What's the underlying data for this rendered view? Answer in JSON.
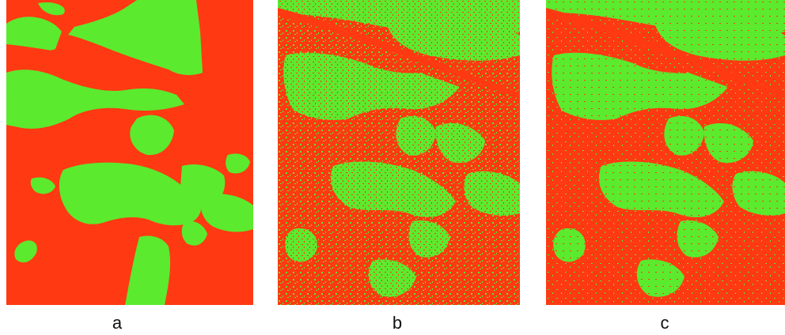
{
  "colors": {
    "foreground": "#5BEA2E",
    "background": "#FF3A12"
  },
  "panels": [
    {
      "label": "a",
      "style": "smooth-segmentation"
    },
    {
      "label": "b",
      "style": "noisy-segmentation"
    },
    {
      "label": "c",
      "style": "moderately-noisy-segmentation"
    }
  ]
}
